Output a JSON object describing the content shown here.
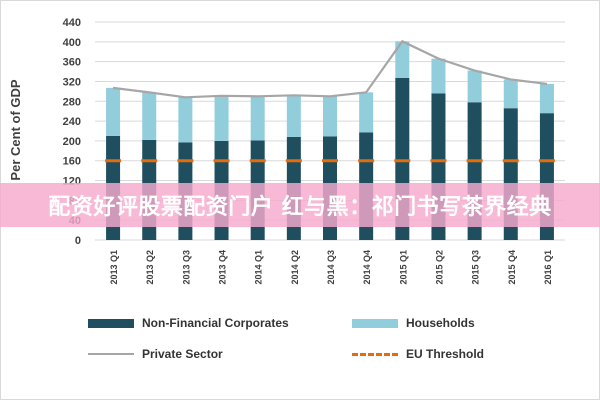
{
  "chart_data": {
    "type": "bar",
    "ylabel": "Per Cent of GDP",
    "ylim": [
      0,
      440
    ],
    "yticks": [
      0,
      40,
      80,
      120,
      160,
      200,
      240,
      280,
      320,
      360,
      400,
      440
    ],
    "grid": true,
    "legend_placement": "bottom",
    "categories": [
      "2013 Q1",
      "2013 Q2",
      "2013 Q3",
      "2013 Q4",
      "2014 Q1",
      "2014 Q2",
      "2014 Q3",
      "2014 Q4",
      "2015 Q1",
      "2015 Q2",
      "2015 Q3",
      "2015 Q4",
      "2016 Q1"
    ],
    "series": [
      {
        "name": "Non-Financial Corporates",
        "kind": "stacked-bar",
        "color": "#1f4e5f",
        "values": [
          210,
          202,
          197,
          200,
          201,
          208,
          209,
          217,
          327,
          296,
          278,
          266,
          256
        ]
      },
      {
        "name": "Households",
        "kind": "stacked-bar",
        "color": "#92cddc",
        "values": [
          97,
          96,
          91,
          91,
          89,
          84,
          81,
          81,
          74,
          70,
          64,
          58,
          59
        ]
      },
      {
        "name": "Private Sector",
        "kind": "line",
        "color": "#a6a6a6",
        "values": [
          307,
          298,
          288,
          291,
          290,
          292,
          290,
          298,
          401,
          366,
          342,
          324,
          315
        ]
      },
      {
        "name": "EU Threshold",
        "kind": "dashed-line",
        "color": "#e46c0a",
        "values": [
          160,
          160,
          160,
          160,
          160,
          160,
          160,
          160,
          160,
          160,
          160,
          160,
          160
        ]
      }
    ]
  },
  "overlay": {
    "banner_text": "配资好评股票配资门户 红与黑：祁门书写茶界经典"
  }
}
